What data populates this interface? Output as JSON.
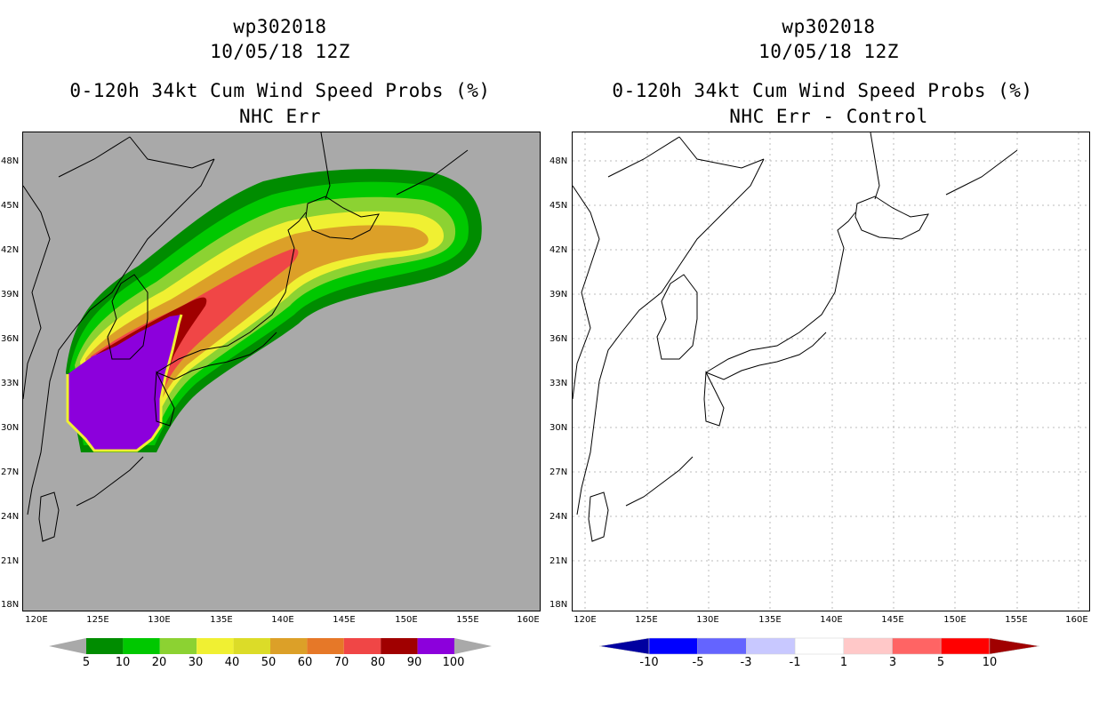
{
  "left_panel": {
    "title_line1": "wp302018",
    "title_line2": "10/05/18 12Z",
    "title_line3": "0-120h 34kt Cum Wind Speed Probs (%)",
    "title_line4": "NHC Err",
    "colorbar_labels": [
      "5",
      "10",
      "20",
      "30",
      "40",
      "50",
      "60",
      "70",
      "80",
      "90",
      "100"
    ],
    "colorbar_colors": [
      "#008c00",
      "#00c800",
      "#8cd232",
      "#f0f032",
      "#dcdc28",
      "#dca028",
      "#e67828",
      "#f04646",
      "#a00000",
      "#8c00dc"
    ],
    "map_background": "#a9a9a9"
  },
  "right_panel": {
    "title_line1": "wp302018",
    "title_line2": "10/05/18 12Z",
    "title_line3": "0-120h 34kt Cum Wind Speed Probs (%)",
    "title_line4": "NHC Err - Control",
    "colorbar_labels": [
      "-10",
      "-5",
      "-3",
      "-1",
      "1",
      "3",
      "5",
      "10"
    ],
    "colorbar_colors": [
      "#0000a0",
      "#0000ff",
      "#6464ff",
      "#c8c8ff",
      "#ffffff",
      "#ffc8c8",
      "#ff6464",
      "#ff0000",
      "#a00000"
    ],
    "map_background": "#ffffff"
  },
  "axes": {
    "lat_labels": [
      "48N",
      "45N",
      "42N",
      "39N",
      "36N",
      "33N",
      "30N",
      "27N",
      "24N",
      "21N",
      "18N"
    ],
    "lon_labels": [
      "120E",
      "125E",
      "130E",
      "135E",
      "140E",
      "145E",
      "150E",
      "155E",
      "160E"
    ]
  }
}
